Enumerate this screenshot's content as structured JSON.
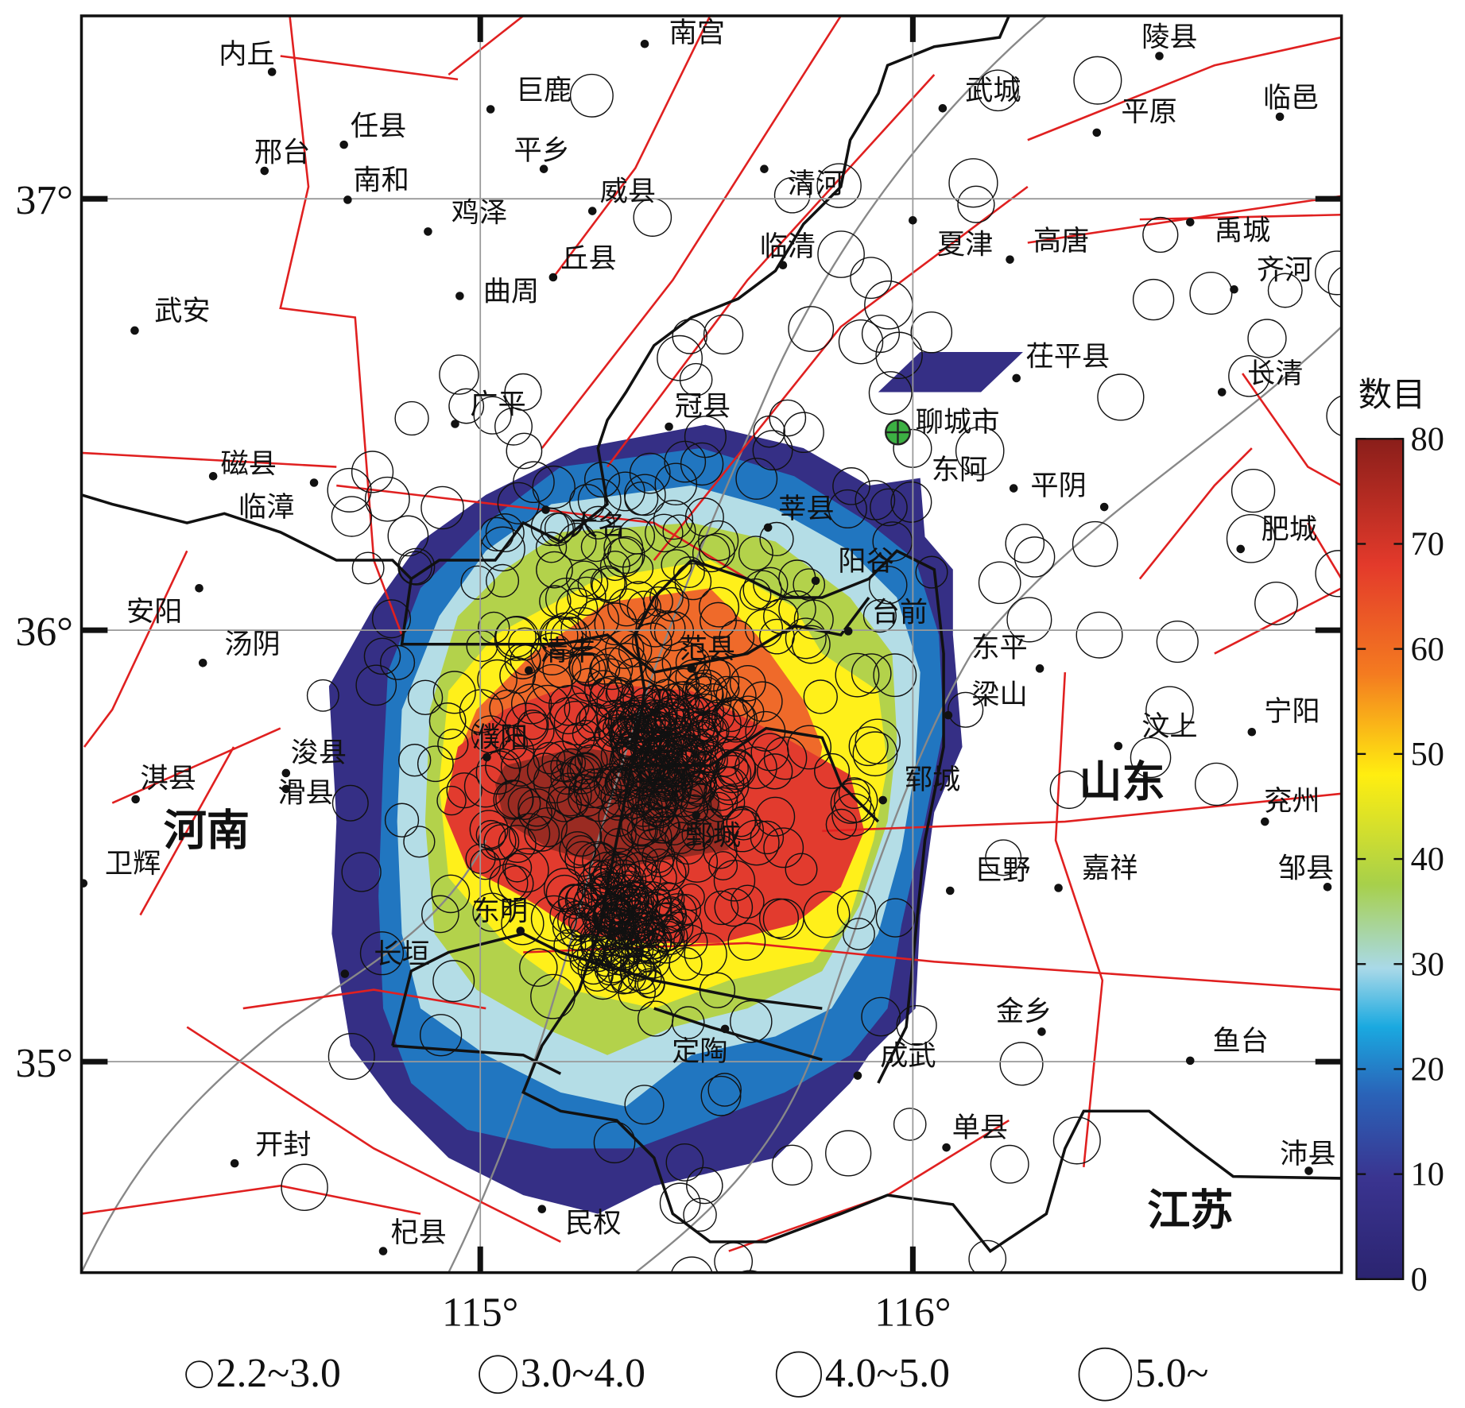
{
  "map": {
    "xlim": [
      114.078,
      116.991
    ],
    "ylim": [
      34.511,
      37.424
    ],
    "xticks": [
      {
        "value": 115,
        "label": "115°"
      },
      {
        "value": 116,
        "label": "116°"
      }
    ],
    "yticks": [
      {
        "value": 35,
        "label": "35°"
      },
      {
        "value": 36,
        "label": "36°"
      },
      {
        "value": 37,
        "label": "37°"
      }
    ],
    "grid": true,
    "cities": [
      "内丘",
      "南宫",
      "陵县",
      "巨鹿",
      "武城",
      "临邑",
      "任县",
      "平原",
      "邢台",
      "平乡",
      "南和",
      "清河",
      "威县",
      "鸡泽",
      "夏津",
      "高唐",
      "禹城",
      "临清",
      "丘县",
      "齐河",
      "曲周",
      "武安",
      "茌平县",
      "长清",
      "广平",
      "冠县",
      "聊城市",
      "磁县",
      "东阿",
      "平阴",
      "临漳",
      "大名",
      "莘县",
      "肥城",
      "安阳",
      "阳谷",
      "台前",
      "东平",
      "汤阴",
      "清丰",
      "范县",
      "梁山",
      "汶上",
      "宁阳",
      "濮阳",
      "浚县",
      "滑县",
      "郓城",
      "淇县",
      "兖州",
      "鄄城",
      "卫辉",
      "巨野",
      "嘉祥",
      "邹县",
      "东明",
      "长垣",
      "金乡",
      "鱼台",
      "定陶",
      "成武",
      "开封",
      "单县",
      "沛县",
      "民权",
      "杞县"
    ],
    "provinces": [
      "河南",
      "山东",
      "江苏"
    ],
    "colorbar": {
      "title": "数目",
      "ylim": [
        0,
        80
      ],
      "yticks": [
        0,
        10,
        20,
        30,
        40,
        50,
        60,
        70,
        80
      ]
    },
    "legend": {
      "labels": [
        "2.2~3.0",
        "3.0~4.0",
        "4.0~5.0",
        "5.0~"
      ]
    }
  }
}
